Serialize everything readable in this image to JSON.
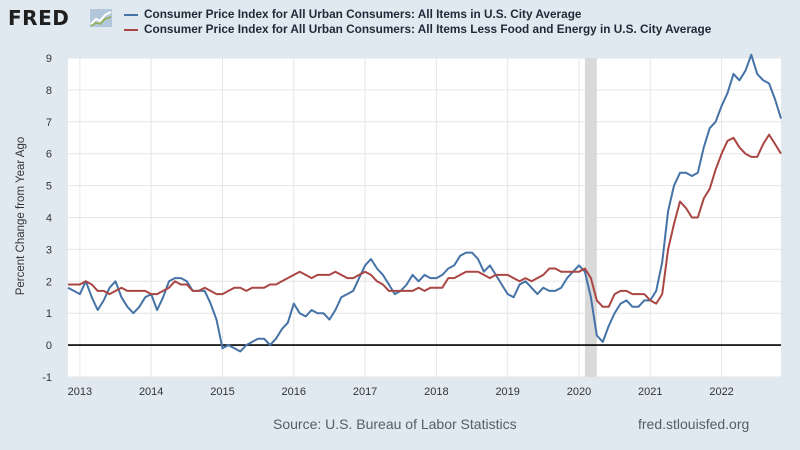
{
  "logo": {
    "text": "FRED"
  },
  "footer": {
    "source": "Source: U.S. Bureau of Labor Statistics",
    "url": "fred.stlouisfed.org"
  },
  "chart_data": {
    "type": "line",
    "title": "",
    "xlabel": "",
    "ylabel": "Percent Change from Year Ago",
    "ylim": [
      -1,
      9
    ],
    "yticks": [
      -1,
      0,
      1,
      2,
      3,
      4,
      5,
      6,
      7,
      8,
      9
    ],
    "yticks_labels": [
      "-1",
      "0",
      "1",
      "2",
      "3",
      "4",
      "5",
      "6",
      "7",
      "8",
      "9"
    ],
    "xlim": [
      "2012-11",
      "2022-11"
    ],
    "xticks": [
      "2013",
      "2014",
      "2015",
      "2016",
      "2017",
      "2018",
      "2019",
      "2020",
      "2021",
      "2022"
    ],
    "grid": true,
    "legend": "top",
    "recession_shading": {
      "start": "2020-02",
      "end": "2020-04"
    },
    "zero_line": true,
    "x": [
      "2012-11",
      "2012-12",
      "2013-01",
      "2013-02",
      "2013-03",
      "2013-04",
      "2013-05",
      "2013-06",
      "2013-07",
      "2013-08",
      "2013-09",
      "2013-10",
      "2013-11",
      "2013-12",
      "2014-01",
      "2014-02",
      "2014-03",
      "2014-04",
      "2014-05",
      "2014-06",
      "2014-07",
      "2014-08",
      "2014-09",
      "2014-10",
      "2014-11",
      "2014-12",
      "2015-01",
      "2015-02",
      "2015-03",
      "2015-04",
      "2015-05",
      "2015-06",
      "2015-07",
      "2015-08",
      "2015-09",
      "2015-10",
      "2015-11",
      "2015-12",
      "2016-01",
      "2016-02",
      "2016-03",
      "2016-04",
      "2016-05",
      "2016-06",
      "2016-07",
      "2016-08",
      "2016-09",
      "2016-10",
      "2016-11",
      "2016-12",
      "2017-01",
      "2017-02",
      "2017-03",
      "2017-04",
      "2017-05",
      "2017-06",
      "2017-07",
      "2017-08",
      "2017-09",
      "2017-10",
      "2017-11",
      "2017-12",
      "2018-01",
      "2018-02",
      "2018-03",
      "2018-04",
      "2018-05",
      "2018-06",
      "2018-07",
      "2018-08",
      "2018-09",
      "2018-10",
      "2018-11",
      "2018-12",
      "2019-01",
      "2019-02",
      "2019-03",
      "2019-04",
      "2019-05",
      "2019-06",
      "2019-07",
      "2019-08",
      "2019-09",
      "2019-10",
      "2019-11",
      "2019-12",
      "2020-01",
      "2020-02",
      "2020-03",
      "2020-04",
      "2020-05",
      "2020-06",
      "2020-07",
      "2020-08",
      "2020-09",
      "2020-10",
      "2020-11",
      "2020-12",
      "2021-01",
      "2021-02",
      "2021-03",
      "2021-04",
      "2021-05",
      "2021-06",
      "2021-07",
      "2021-08",
      "2021-09",
      "2021-10",
      "2021-11",
      "2021-12",
      "2022-01",
      "2022-02",
      "2022-03",
      "2022-04",
      "2022-05",
      "2022-06",
      "2022-07",
      "2022-08",
      "2022-09",
      "2022-10",
      "2022-11"
    ],
    "series": [
      {
        "name": "Consumer Price Index for All Urban Consumers: All Items in U.S. City Average",
        "color": "#4572a7",
        "values": [
          1.8,
          1.7,
          1.6,
          2.0,
          1.5,
          1.1,
          1.4,
          1.8,
          2.0,
          1.5,
          1.2,
          1.0,
          1.2,
          1.5,
          1.6,
          1.1,
          1.5,
          2.0,
          2.1,
          2.1,
          2.0,
          1.7,
          1.7,
          1.7,
          1.3,
          0.8,
          -0.1,
          0.0,
          -0.1,
          -0.2,
          0.0,
          0.1,
          0.2,
          0.2,
          0.0,
          0.2,
          0.5,
          0.7,
          1.3,
          1.0,
          0.9,
          1.1,
          1.0,
          1.0,
          0.8,
          1.1,
          1.5,
          1.6,
          1.7,
          2.1,
          2.5,
          2.7,
          2.4,
          2.2,
          1.9,
          1.6,
          1.7,
          1.9,
          2.2,
          2.0,
          2.2,
          2.1,
          2.1,
          2.2,
          2.4,
          2.5,
          2.8,
          2.9,
          2.9,
          2.7,
          2.3,
          2.5,
          2.2,
          1.9,
          1.6,
          1.5,
          1.9,
          2.0,
          1.8,
          1.6,
          1.8,
          1.7,
          1.7,
          1.8,
          2.1,
          2.3,
          2.5,
          2.3,
          1.5,
          0.3,
          0.1,
          0.6,
          1.0,
          1.3,
          1.4,
          1.2,
          1.2,
          1.4,
          1.4,
          1.7,
          2.6,
          4.2,
          5.0,
          5.4,
          5.4,
          5.3,
          5.4,
          6.2,
          6.8,
          7.0,
          7.5,
          7.9,
          8.5,
          8.3,
          8.6,
          9.1,
          8.5,
          8.3,
          8.2,
          7.7,
          7.1
        ]
      },
      {
        "name": "Consumer Price Index for All Urban Consumers: All Items Less Food and Energy in U.S. City Average",
        "color": "#aa4643",
        "values": [
          1.9,
          1.9,
          1.9,
          2.0,
          1.9,
          1.7,
          1.7,
          1.6,
          1.7,
          1.8,
          1.7,
          1.7,
          1.7,
          1.7,
          1.6,
          1.6,
          1.7,
          1.8,
          2.0,
          1.9,
          1.9,
          1.7,
          1.7,
          1.8,
          1.7,
          1.6,
          1.6,
          1.7,
          1.8,
          1.8,
          1.7,
          1.8,
          1.8,
          1.8,
          1.9,
          1.9,
          2.0,
          2.1,
          2.2,
          2.3,
          2.2,
          2.1,
          2.2,
          2.2,
          2.2,
          2.3,
          2.2,
          2.1,
          2.1,
          2.2,
          2.3,
          2.2,
          2.0,
          1.9,
          1.7,
          1.7,
          1.7,
          1.7,
          1.7,
          1.8,
          1.7,
          1.8,
          1.8,
          1.8,
          2.1,
          2.1,
          2.2,
          2.3,
          2.3,
          2.3,
          2.2,
          2.1,
          2.2,
          2.2,
          2.2,
          2.1,
          2.0,
          2.1,
          2.0,
          2.1,
          2.2,
          2.4,
          2.4,
          2.3,
          2.3,
          2.3,
          2.3,
          2.4,
          2.1,
          1.4,
          1.2,
          1.2,
          1.6,
          1.7,
          1.7,
          1.6,
          1.6,
          1.6,
          1.4,
          1.3,
          1.6,
          3.0,
          3.8,
          4.5,
          4.3,
          4.0,
          4.0,
          4.6,
          4.9,
          5.5,
          6.0,
          6.4,
          6.5,
          6.2,
          6.0,
          5.9,
          5.9,
          6.3,
          6.6,
          6.3,
          6.0
        ]
      }
    ]
  }
}
